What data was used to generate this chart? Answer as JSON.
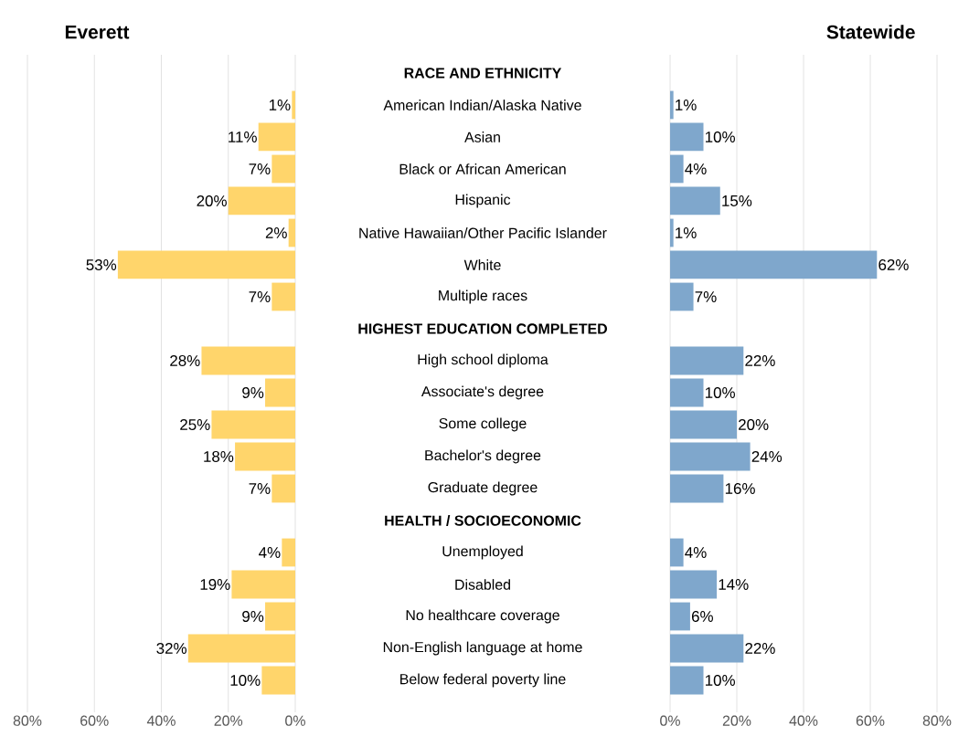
{
  "chart_data": [
    {
      "type": "bar",
      "orientation": "horizontal",
      "title": "Everett",
      "categories": [
        "RACE AND ETHNICITY",
        "American Indian/Alaska Native",
        "Asian",
        "Black or African American",
        "Hispanic",
        "Native Hawaiian/Other Pacific Islander",
        "White",
        "Multiple races",
        "HIGHEST EDUCATION COMPLETED",
        "High school diploma",
        "Associate's degree",
        "Some college",
        "Bachelor's degree",
        "Graduate degree",
        "HEALTH / SOCIOECONOMIC",
        "Unemployed",
        "Disabled",
        "No healthcare coverage",
        "Non-English language at home",
        "Below federal poverty line"
      ],
      "values": [
        null,
        1,
        11,
        7,
        20,
        2,
        53,
        7,
        null,
        28,
        9,
        25,
        18,
        7,
        null,
        4,
        19,
        9,
        32,
        10
      ],
      "value_labels": [
        null,
        "1%",
        "11%",
        "7%",
        "20%",
        "2%",
        "53%",
        "7%",
        null,
        "28%",
        "9%",
        "25%",
        "18%",
        "7%",
        null,
        "4%",
        "19%",
        "9%",
        "32%",
        "10%"
      ],
      "color": "#ffd56b",
      "xlim": [
        80,
        0
      ],
      "xticks": [
        {
          "value": 80,
          "label": "80%"
        },
        {
          "value": 60,
          "label": "60%"
        },
        {
          "value": 40,
          "label": "40%"
        },
        {
          "value": 20,
          "label": "20%"
        },
        {
          "value": 0,
          "label": "0%"
        }
      ],
      "grid": "x"
    },
    {
      "type": "bar",
      "orientation": "horizontal",
      "title": "Statewide",
      "categories": [
        null,
        null,
        null,
        null,
        null,
        null,
        null,
        null,
        null,
        null,
        null,
        null,
        null,
        null,
        null,
        null,
        null,
        null,
        null,
        null
      ],
      "values": [
        null,
        1,
        10,
        4,
        15,
        1,
        62,
        7,
        null,
        22,
        10,
        20,
        24,
        16,
        null,
        4,
        14,
        6,
        22,
        10
      ],
      "value_labels": [
        null,
        "1%",
        "10%",
        "4%",
        "15%",
        "1%",
        "62%",
        "7%",
        null,
        "22%",
        "10%",
        "20%",
        "24%",
        "16%",
        null,
        "4%",
        "14%",
        "6%",
        "22%",
        "10%"
      ],
      "color": "#7fa7cc",
      "xlim": [
        0,
        80
      ],
      "xticks": [
        {
          "value": 0,
          "label": "0%"
        },
        {
          "value": 20,
          "label": "20%"
        },
        {
          "value": 40,
          "label": "40%"
        },
        {
          "value": 60,
          "label": "60%"
        },
        {
          "value": 80,
          "label": "80%"
        }
      ],
      "grid": "x",
      "tick_labels": "x"
    }
  ]
}
